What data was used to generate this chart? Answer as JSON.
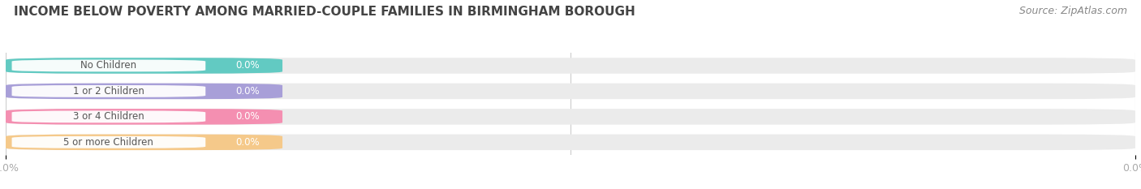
{
  "title": "INCOME BELOW POVERTY AMONG MARRIED-COUPLE FAMILIES IN BIRMINGHAM BOROUGH",
  "source": "Source: ZipAtlas.com",
  "categories": [
    "No Children",
    "1 or 2 Children",
    "3 or 4 Children",
    "5 or more Children"
  ],
  "values": [
    0.0,
    0.0,
    0.0,
    0.0
  ],
  "bar_colors": [
    "#62cac2",
    "#a89fd8",
    "#f48fb1",
    "#f5c98a"
  ],
  "bar_bg_color": "#ebebeb",
  "background_color": "#ffffff",
  "title_fontsize": 11,
  "source_fontsize": 9,
  "label_fontsize": 8.5,
  "value_fontsize": 8.5,
  "tick_fontsize": 9,
  "tick_color": "#aaaaaa"
}
